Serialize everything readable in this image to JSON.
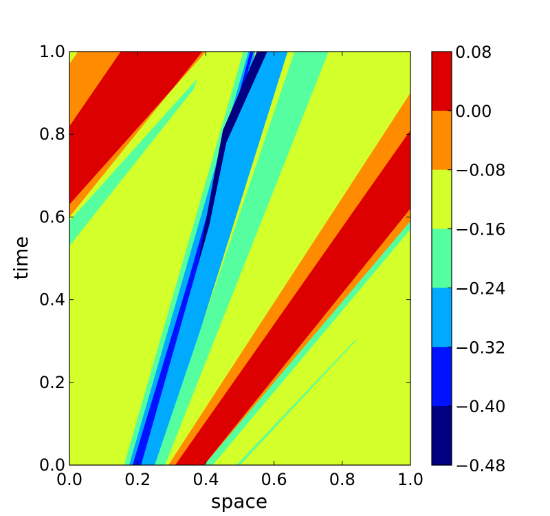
{
  "chart_data": {
    "type": "heatmap",
    "subtype": "filled-contour",
    "title": "",
    "xlabel": "space",
    "ylabel": "time",
    "xlim": [
      0.0,
      1.0
    ],
    "ylim": [
      0.0,
      1.0
    ],
    "x_ticks": [
      "0.0",
      "0.2",
      "0.4",
      "0.6",
      "0.8",
      "1.0"
    ],
    "y_ticks": [
      "0.0",
      "0.2",
      "0.4",
      "0.6",
      "0.8",
      "1.0"
    ],
    "grid": false,
    "colorbar": {
      "levels": [
        0.08,
        0.0,
        -0.08,
        -0.16,
        -0.24,
        -0.32,
        -0.4,
        -0.48
      ],
      "tick_labels": [
        "0.08",
        "0.00",
        "−0.08",
        "−0.16",
        "−0.24",
        "−0.32",
        "−0.40",
        "−0.48"
      ],
      "colors": [
        "#dd0000",
        "#ff8c00",
        "#d3ff2a",
        "#55ffa0",
        "#00aaff",
        "#0012ff",
        "#000080"
      ],
      "placement": "right"
    },
    "background_color": "#d3ff2a",
    "bands": [
      {
        "value_range": [
          -0.24,
          -0.16
        ],
        "color": "#55ffa0",
        "polygon": [
          [
            0.16,
            0.0
          ],
          [
            0.265,
            0.0
          ],
          [
            0.545,
            1.0
          ],
          [
            0.51,
            1.0
          ]
        ]
      },
      {
        "value_range": [
          -0.32,
          -0.24
        ],
        "color": "#00aaff",
        "polygon": [
          [
            0.175,
            0.0
          ],
          [
            0.26,
            0.0
          ],
          [
            0.545,
            1.0
          ],
          [
            0.525,
            1.0
          ]
        ]
      },
      {
        "value_range": [
          -0.4,
          -0.32
        ],
        "color": "#0012ff",
        "polygon": [
          [
            0.185,
            0.0
          ],
          [
            0.21,
            0.0
          ],
          [
            0.4,
            0.45
          ],
          [
            0.45,
            0.75
          ],
          [
            0.53,
            1.0
          ],
          [
            0.54,
            1.0
          ],
          [
            0.35,
            0.45
          ]
        ]
      },
      {
        "value_range": [
          -0.48,
          -0.4
        ],
        "color": "#000080",
        "polygon": [
          [
            0.36,
            0.41
          ],
          [
            0.42,
            0.68
          ],
          [
            0.45,
            0.81
          ],
          [
            0.55,
            1.0
          ],
          [
            0.58,
            1.0
          ],
          [
            0.48,
            0.79
          ],
          [
            0.39,
            0.48
          ]
        ]
      },
      {
        "value_range": [
          -0.32,
          -0.24
        ],
        "color": "#00aaff",
        "polygon": [
          [
            0.21,
            0.0
          ],
          [
            0.26,
            0.0
          ],
          [
            0.64,
            1.0
          ],
          [
            0.58,
            1.0
          ],
          [
            0.46,
            0.78
          ],
          [
            0.41,
            0.58
          ]
        ]
      },
      {
        "value_range": [
          -0.24,
          -0.16
        ],
        "color": "#55ffa0",
        "polygon": [
          [
            0.25,
            0.0
          ],
          [
            0.3,
            0.0
          ],
          [
            0.76,
            1.0
          ],
          [
            0.66,
            1.0
          ]
        ]
      },
      {
        "value_range": [
          -0.16,
          -0.08
        ],
        "color": "#d3ff2a",
        "polygon": [
          [
            0.28,
            0.0
          ],
          [
            0.33,
            0.0
          ],
          [
            1.0,
            0.92
          ],
          [
            1.0,
            1.0
          ],
          [
            0.76,
            1.0
          ]
        ]
      },
      {
        "value_range": [
          -0.08,
          0.0
        ],
        "color": "#ff8c00",
        "polygon": [
          [
            0.29,
            0.0
          ],
          [
            0.335,
            0.0
          ],
          [
            1.0,
            0.81
          ],
          [
            1.0,
            0.9
          ]
        ]
      },
      {
        "value_range": [
          0.0,
          0.08
        ],
        "color": "#dd0000",
        "polygon": [
          [
            0.31,
            0.0
          ],
          [
            0.395,
            0.0
          ],
          [
            1.0,
            0.62
          ],
          [
            1.0,
            0.81
          ]
        ]
      },
      {
        "value_range": [
          -0.08,
          0.0
        ],
        "color": "#ff8c00",
        "polygon": [
          [
            0.37,
            0.0
          ],
          [
            0.41,
            0.0
          ],
          [
            1.0,
            0.58
          ],
          [
            1.0,
            0.62
          ],
          [
            0.395,
            0.0
          ]
        ]
      },
      {
        "value_range": [
          -0.24,
          -0.16
        ],
        "color": "#55ffa0",
        "polygon": [
          [
            0.395,
            0.0
          ],
          [
            0.42,
            0.0
          ],
          [
            1.0,
            0.57
          ],
          [
            1.0,
            0.59
          ]
        ]
      },
      {
        "value_range": [
          0.0,
          0.08
        ],
        "color": "#dd0000",
        "polygon": [
          [
            0.0,
            0.63
          ],
          [
            0.0,
            0.82
          ],
          [
            0.15,
            1.0
          ],
          [
            0.4,
            1.0
          ]
        ]
      },
      {
        "value_range": [
          -0.08,
          0.0
        ],
        "color": "#ff8c00",
        "polygon": [
          [
            0.0,
            0.82
          ],
          [
            0.0,
            0.97
          ],
          [
            0.025,
            1.0
          ],
          [
            0.15,
            1.0
          ]
        ]
      },
      {
        "value_range": [
          -0.08,
          0.0
        ],
        "color": "#ff8c00",
        "polygon": [
          [
            0.0,
            0.6
          ],
          [
            0.0,
            0.63
          ],
          [
            0.4,
            1.0
          ],
          [
            0.39,
            1.0
          ]
        ]
      },
      {
        "value_range": [
          -0.24,
          -0.16
        ],
        "color": "#55ffa0",
        "polygon": [
          [
            0.0,
            0.53
          ],
          [
            0.0,
            0.59
          ],
          [
            0.375,
            0.935
          ],
          [
            0.365,
            0.91
          ]
        ]
      },
      {
        "value_range": [
          -0.24,
          -0.16
        ],
        "color": "#55ffa0",
        "polygon": [
          [
            0.49,
            0.0
          ],
          [
            0.5,
            0.0
          ],
          [
            0.845,
            0.305
          ],
          [
            0.835,
            0.3
          ]
        ]
      }
    ]
  }
}
